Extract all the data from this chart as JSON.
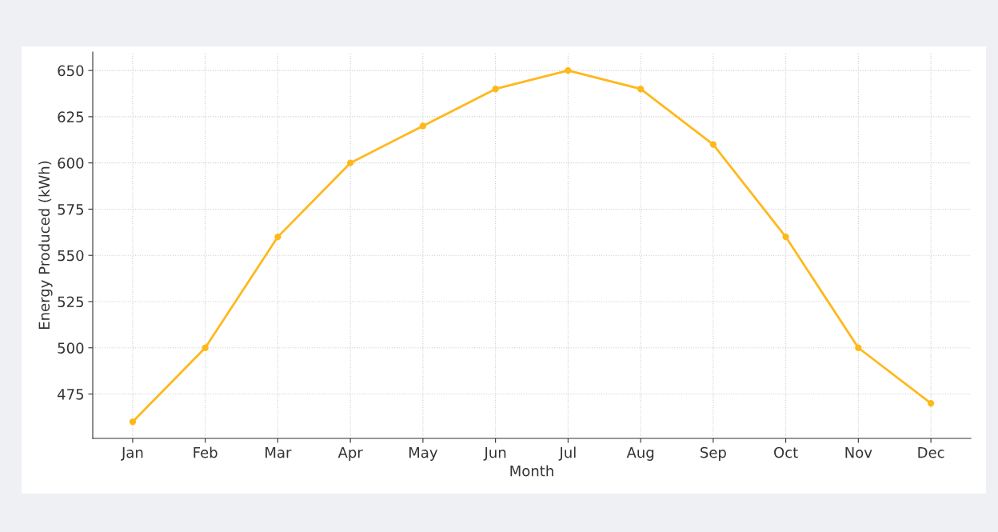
{
  "chart_data": {
    "type": "line",
    "xlabel": "Month",
    "ylabel": "Energy Produced (kWh)",
    "categories": [
      "Jan",
      "Feb",
      "Mar",
      "Apr",
      "May",
      "Jun",
      "Jul",
      "Aug",
      "Sep",
      "Oct",
      "Nov",
      "Dec"
    ],
    "series": [
      {
        "color": "#ffb81c",
        "values": [
          460,
          500,
          560,
          600,
          620,
          640,
          650,
          640,
          610,
          560,
          500,
          470
        ]
      }
    ],
    "ylim": [
      451,
      660
    ],
    "yticks": [
      475,
      500,
      525,
      550,
      575,
      600,
      625,
      650
    ],
    "grid": true,
    "marker": "circle",
    "line_style": "solid"
  }
}
